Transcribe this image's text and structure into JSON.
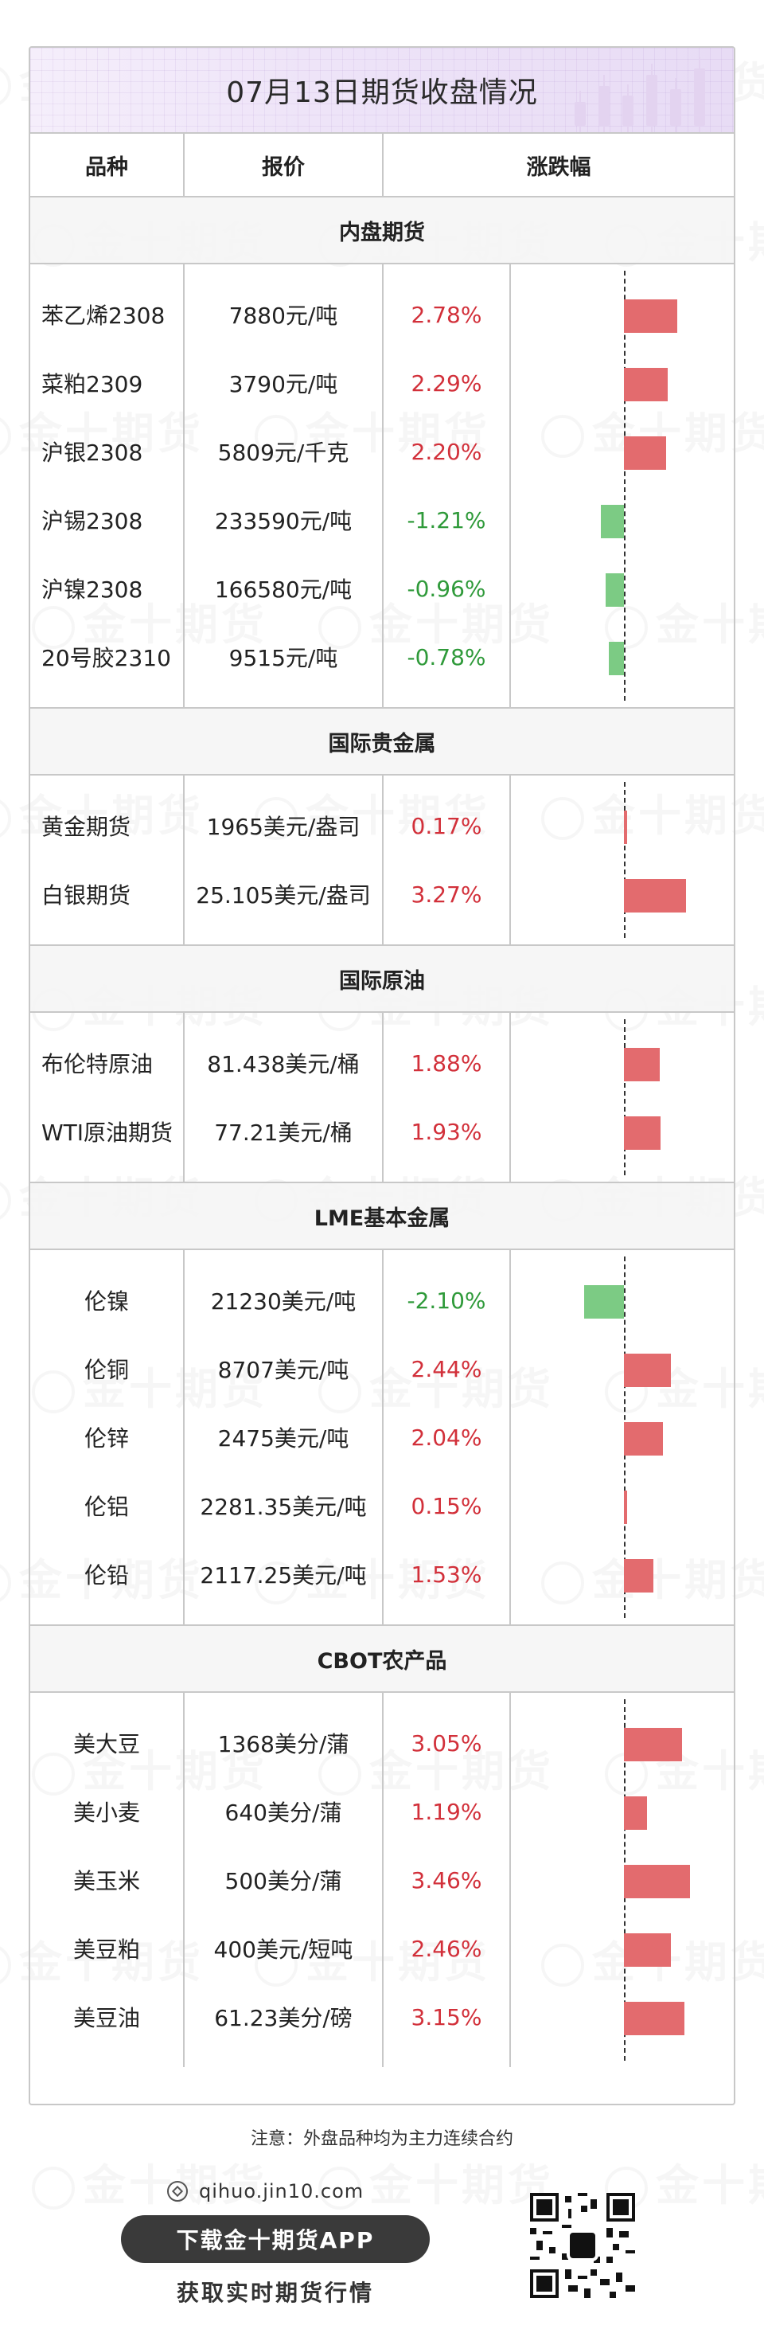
{
  "title": "07月13日期货收盘情况",
  "headers": {
    "name": "品种",
    "price": "报价",
    "change": "涨跌幅"
  },
  "watermark_text": "金十期货",
  "sections": [
    {
      "title": "内盘期货",
      "rows": [
        {
          "name": "苯乙烯2308",
          "price": "7880元/吨",
          "change_text": "2.78%",
          "change": 2.78
        },
        {
          "name": "菜粕2309",
          "price": "3790元/吨",
          "change_text": "2.29%",
          "change": 2.29
        },
        {
          "name": "沪银2308",
          "price": "5809元/千克",
          "change_text": "2.20%",
          "change": 2.2
        },
        {
          "name": "沪锡2308",
          "price": "233590元/吨",
          "change_text": "-1.21%",
          "change": -1.21
        },
        {
          "name": "沪镍2308",
          "price": "166580元/吨",
          "change_text": "-0.96%",
          "change": -0.96
        },
        {
          "name": "20号胶2310",
          "price": "9515元/吨",
          "change_text": "-0.78%",
          "change": -0.78
        }
      ]
    },
    {
      "title": "国际贵金属",
      "rows": [
        {
          "name": "黄金期货",
          "price": "1965美元/盎司",
          "change_text": "0.17%",
          "change": 0.17
        },
        {
          "name": "白银期货",
          "price": "25.105美元/盎司",
          "change_text": "3.27%",
          "change": 3.27
        }
      ]
    },
    {
      "title": "国际原油",
      "rows": [
        {
          "name": "布伦特原油",
          "price": "81.438美元/桶",
          "change_text": "1.88%",
          "change": 1.88
        },
        {
          "name": "WTI原油期货",
          "price": "77.21美元/桶",
          "change_text": "1.93%",
          "change": 1.93
        }
      ]
    },
    {
      "title": "LME基本金属",
      "rows": [
        {
          "name": "伦镍",
          "price": "21230美元/吨",
          "change_text": "-2.10%",
          "change": -2.1
        },
        {
          "name": "伦铜",
          "price": "8707美元/吨",
          "change_text": "2.44%",
          "change": 2.44
        },
        {
          "name": "伦锌",
          "price": "2475美元/吨",
          "change_text": "2.04%",
          "change": 2.04
        },
        {
          "name": "伦铝",
          "price": "2281.35美元/吨",
          "change_text": "0.15%",
          "change": 0.15
        },
        {
          "name": "伦铅",
          "price": "2117.25美元/吨",
          "change_text": "1.53%",
          "change": 1.53
        }
      ]
    },
    {
      "title": "CBOT农产品",
      "rows": [
        {
          "name": "美大豆",
          "price": "1368美分/蒲",
          "change_text": "3.05%",
          "change": 3.05
        },
        {
          "name": "美小麦",
          "price": "640美分/蒲",
          "change_text": "1.19%",
          "change": 1.19
        },
        {
          "name": "美玉米",
          "price": "500美分/蒲",
          "change_text": "3.46%",
          "change": 3.46
        },
        {
          "name": "美豆粕",
          "price": "400美元/短吨",
          "change_text": "2.46%",
          "change": 2.46
        },
        {
          "name": "美豆油",
          "price": "61.23美分/磅",
          "change_text": "3.15%",
          "change": 3.15
        }
      ]
    }
  ],
  "colors": {
    "up": "#d2303a",
    "down": "#2f9a3a",
    "up_bar": "#e36b6e",
    "down_bar": "#7ccb84"
  },
  "footer": {
    "note": "注意：外盘品种均为主力连续合约",
    "site": "qihuo.jin10.com",
    "app_button": "下载金十期货APP",
    "slogan": "获取实时期货行情"
  }
}
